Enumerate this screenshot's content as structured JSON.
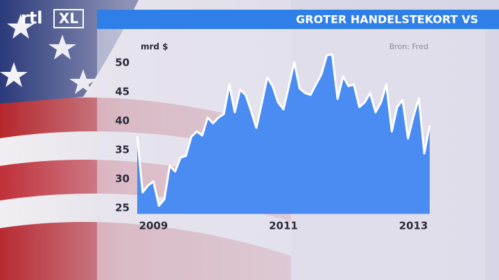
{
  "logo": {
    "main": "rtl",
    "box": "XL"
  },
  "chart_data": {
    "type": "area",
    "title": "GROTER HANDELSTEKORT VS",
    "y_label": "mrd $",
    "source": "Bron: Fred",
    "categories": [
      null,
      null,
      null,
      "2009",
      null,
      null,
      null,
      null,
      null,
      null,
      null,
      null,
      null,
      null,
      null,
      null,
      null,
      null,
      null,
      null,
      null,
      null,
      null,
      null,
      null,
      null,
      null,
      "2011",
      null,
      null,
      null,
      null,
      null,
      null,
      null,
      null,
      null,
      null,
      null,
      null,
      null,
      null,
      null,
      null,
      null,
      null,
      null,
      null,
      null,
      null,
      null,
      "2013",
      null,
      null,
      null
    ],
    "values": [
      37.4,
      27.7,
      28.9,
      29.6,
      25.4,
      26.5,
      32.3,
      31.3,
      33.7,
      34.0,
      37.3,
      38.2,
      37.5,
      40.6,
      39.6,
      40.6,
      41.2,
      46.3,
      41.5,
      45.4,
      44.5,
      41.8,
      38.8,
      43.0,
      47.5,
      46.0,
      43.2,
      42.0,
      46.0,
      50.1,
      45.6,
      44.8,
      44.5,
      46.3,
      48.0,
      51.3,
      51.5,
      43.8,
      47.7,
      46.0,
      46.3,
      42.4,
      43.2,
      44.8,
      41.5,
      43.2,
      46.3,
      38.2,
      42.4,
      43.6,
      37.0,
      40.8,
      43.9,
      34.4,
      39.2
    ],
    "color": "#4a8cf2",
    "line_color": "#ffffff",
    "ylim": [
      24,
      54
    ],
    "yticks": [
      25,
      30,
      35,
      40,
      45,
      50
    ]
  }
}
